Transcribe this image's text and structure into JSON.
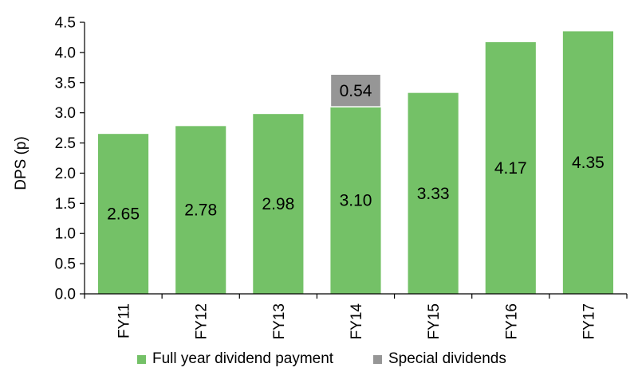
{
  "chart_data": {
    "type": "bar",
    "stacked": true,
    "categories": [
      "FY11",
      "FY12",
      "FY13",
      "FY14",
      "FY15",
      "FY16",
      "FY17"
    ],
    "series": [
      {
        "name": "Full year dividend payment",
        "values": [
          2.65,
          2.78,
          2.98,
          3.1,
          3.33,
          4.17,
          4.35
        ],
        "labels": [
          "2.65",
          "2.78",
          "2.98",
          "3.10",
          "3.33",
          "4.17",
          "4.35"
        ],
        "color": "#74C167"
      },
      {
        "name": "Special dividends",
        "values": [
          0,
          0,
          0,
          0.54,
          0,
          0,
          0
        ],
        "labels": [
          "",
          "",
          "",
          "0.54",
          "",
          "",
          ""
        ],
        "color": "#969696"
      }
    ],
    "title": "",
    "xlabel": "",
    "ylabel": "DPS (p)",
    "ylim": [
      0,
      4.5
    ],
    "yticks": [
      "0.0",
      "0.5",
      "1.0",
      "1.5",
      "2.0",
      "2.5",
      "3.0",
      "3.5",
      "4.0",
      "4.5"
    ],
    "grid": false,
    "legend": "bottom"
  }
}
